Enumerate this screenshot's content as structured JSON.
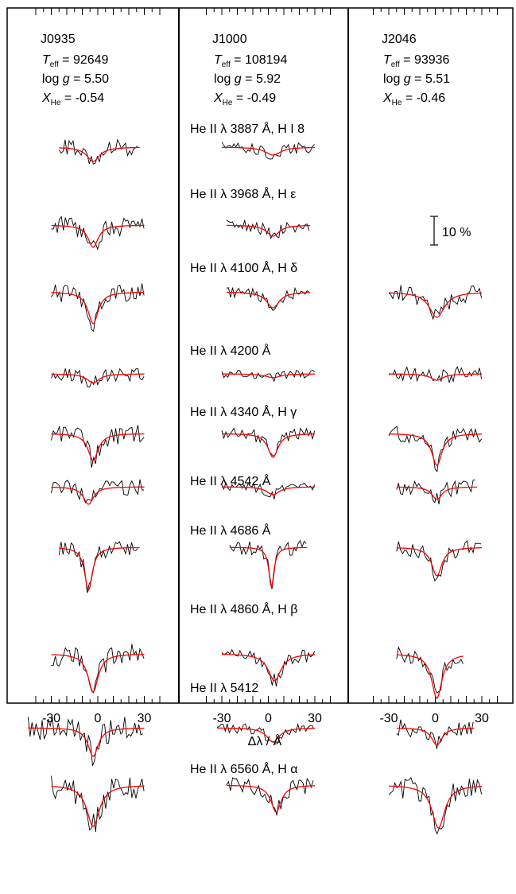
{
  "chart_data": {
    "type": "line",
    "xlabel": "Δλ / Å",
    "xlim": [
      -45,
      45
    ],
    "xticks": [
      -30,
      0,
      30
    ],
    "model_color": "#ff0000",
    "observed_color": "#000000",
    "scale_bar_label": "10 %",
    "panels": [
      {
        "name": "J0935",
        "params": [
          {
            "label": "T",
            "sub": "eff",
            "value": "92649"
          },
          {
            "label": "log g",
            "sub": "",
            "value": "5.50"
          },
          {
            "label": "X",
            "sub": "He",
            "value": "-0.54"
          }
        ],
        "lines": [
          {
            "center": -3,
            "depth": 0.45,
            "width": 5,
            "noise": 0.55,
            "range": [
              -25,
              27
            ]
          },
          {
            "center": -3,
            "depth": 0.7,
            "width": 4,
            "noise": 0.6,
            "range": [
              -30,
              30
            ]
          },
          {
            "center": -3,
            "depth": 1.0,
            "width": 4,
            "noise": 0.6,
            "range": [
              -30,
              30
            ]
          },
          {
            "center": -3,
            "depth": 0.28,
            "width": 5,
            "noise": 0.45,
            "range": [
              -30,
              30
            ]
          },
          {
            "center": -3,
            "depth": 0.85,
            "width": 4,
            "noise": 0.6,
            "range": [
              -30,
              30
            ]
          },
          {
            "center": -6,
            "depth": 0.55,
            "width": 4,
            "noise": 0.5,
            "range": [
              -30,
              30
            ]
          },
          {
            "center": -6,
            "depth": 1.35,
            "width": 3,
            "noise": 0.5,
            "range": [
              -25,
              27
            ]
          },
          {
            "center": -3,
            "depth": 1.2,
            "width": 4,
            "noise": 0.7,
            "range": [
              -30,
              30
            ]
          },
          {
            "center": -3,
            "depth": 0.9,
            "width": 4,
            "noise": 0.75,
            "range": [
              -45,
              30
            ]
          },
          {
            "center": -3,
            "depth": 1.3,
            "width": 5,
            "noise": 0.8,
            "range": [
              -30,
              30
            ]
          }
        ]
      },
      {
        "name": "J1000",
        "params": [
          {
            "label": "T",
            "sub": "eff",
            "value": "108194"
          },
          {
            "label": "log g",
            "sub": "",
            "value": "5.92"
          },
          {
            "label": "X",
            "sub": "He",
            "value": "-0.49"
          }
        ],
        "lines": [
          {
            "center": 3,
            "depth": 0.25,
            "width": 6,
            "noise": 0.35,
            "range": [
              -30,
              30
            ]
          },
          {
            "center": 3,
            "depth": 0.35,
            "width": 5,
            "noise": 0.4,
            "range": [
              -27,
              27
            ]
          },
          {
            "center": 3,
            "depth": 0.5,
            "width": 5,
            "noise": 0.35,
            "range": [
              -27,
              27
            ]
          },
          {
            "center": 3,
            "depth": 0.12,
            "width": 6,
            "noise": 0.25,
            "range": [
              -30,
              30
            ]
          },
          {
            "center": 3,
            "depth": 0.75,
            "width": 4,
            "noise": 0.4,
            "range": [
              -30,
              30
            ]
          },
          {
            "center": 3,
            "depth": 0.25,
            "width": 5,
            "noise": 0.3,
            "range": [
              -30,
              30
            ]
          },
          {
            "center": 2,
            "depth": 1.25,
            "width": 2,
            "noise": 0.45,
            "range": [
              -25,
              25
            ]
          },
          {
            "center": 4,
            "depth": 0.85,
            "width": 5,
            "noise": 0.45,
            "range": [
              -30,
              30
            ]
          },
          {
            "center": 3,
            "depth": 0.45,
            "width": 5,
            "noise": 0.35,
            "range": [
              -33,
              30
            ]
          },
          {
            "center": 5,
            "depth": 0.85,
            "width": 4,
            "noise": 0.5,
            "range": [
              -27,
              30
            ]
          }
        ]
      },
      {
        "name": "J2046",
        "params": [
          {
            "label": "T",
            "sub": "eff",
            "value": "93936"
          },
          {
            "label": "log g",
            "sub": "",
            "value": "5.51"
          },
          {
            "label": "X",
            "sub": "He",
            "value": "-0.46"
          }
        ],
        "lines": [
          null,
          null,
          {
            "center": 1,
            "depth": 0.8,
            "width": 6,
            "noise": 0.55,
            "range": [
              -30,
              30
            ]
          },
          {
            "center": 1,
            "depth": 0.2,
            "width": 5,
            "noise": 0.5,
            "range": [
              -30,
              30
            ]
          },
          {
            "center": 1,
            "depth": 1.0,
            "width": 4,
            "noise": 0.5,
            "range": [
              -30,
              30
            ]
          },
          {
            "center": 1,
            "depth": 0.4,
            "width": 4,
            "noise": 0.5,
            "range": [
              -25,
              27
            ]
          },
          {
            "center": 1,
            "depth": 0.9,
            "width": 4,
            "noise": 0.55,
            "range": [
              -25,
              30
            ]
          },
          {
            "center": 1,
            "depth": 1.4,
            "width": 4,
            "noise": 0.5,
            "range": [
              -25,
              18
            ]
          },
          {
            "center": 1,
            "depth": 0.55,
            "width": 4,
            "noise": 0.55,
            "range": [
              -25,
              25
            ]
          },
          {
            "center": 2,
            "depth": 1.35,
            "width": 5,
            "noise": 0.75,
            "range": [
              -30,
              30
            ]
          }
        ]
      }
    ],
    "line_labels": [
      "He II λ 3887 Å, H I 8",
      "He II λ 3968 Å, H ε",
      "He II λ 4100 Å, H δ",
      "He II λ 4200 Å",
      "He II λ 4340 Å, H γ",
      "He II λ 4542 Å",
      "He II λ 4686 Å",
      "He II λ 4860 Å, H β",
      "He II λ 5412",
      "He II λ 6560 Å, H α"
    ]
  }
}
